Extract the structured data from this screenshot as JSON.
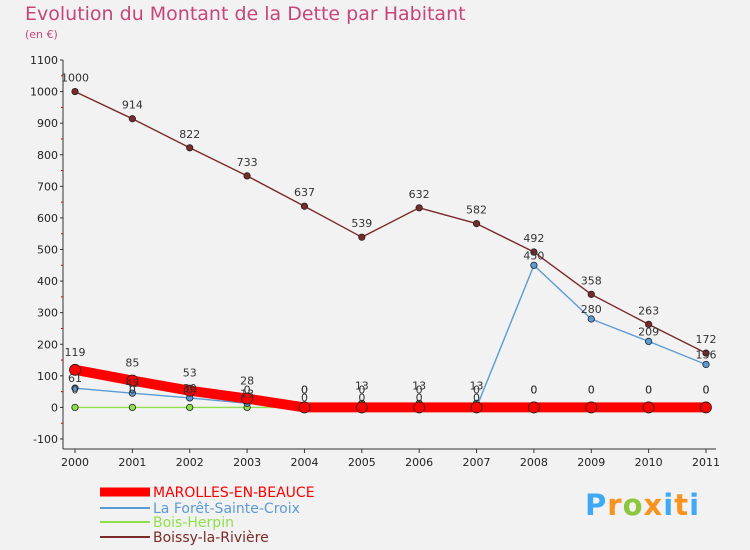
{
  "chart_data": {
    "type": "line",
    "title": "Evolution du Montant de la Dette par Habitant",
    "unit_label": "(en €)",
    "x": [
      "2000",
      "2001",
      "2002",
      "2003",
      "2004",
      "2005",
      "2006",
      "2007",
      "2008",
      "2009",
      "2010",
      "2011"
    ],
    "ylim": [
      -100,
      1100
    ],
    "y_ticks": [
      -100,
      0,
      100,
      200,
      300,
      400,
      500,
      600,
      700,
      800,
      900,
      1000,
      1100
    ],
    "grid": false,
    "legend_position": "bottom-left",
    "series": [
      {
        "name": "MAROLLES-EN-BEAUCE",
        "color": "#ff0000",
        "values": [
          119,
          85,
          53,
          28,
          0,
          0,
          0,
          0,
          0,
          0,
          0,
          0
        ],
        "labels": [
          "119",
          "85",
          "53",
          "28",
          "0",
          "0",
          "0",
          "0",
          "0",
          "0",
          "0",
          "0"
        ]
      },
      {
        "name": "La Forêt-Sainte-Croix",
        "color": "#5b9bd5",
        "values": [
          61,
          45,
          30,
          13,
          0,
          0,
          0,
          0,
          450,
          280,
          209,
          136
        ],
        "labels": [
          "61",
          "45",
          "30",
          "13",
          "0",
          "0",
          "0",
          "0",
          "450",
          "280",
          "209",
          "136"
        ]
      },
      {
        "name": "Bois-Herpin",
        "color": "#8ee04a",
        "values": [
          0,
          0,
          0,
          0,
          0,
          13,
          13,
          13,
          0,
          0,
          0,
          0
        ],
        "labels": [
          "0",
          "0",
          "0",
          "0",
          "0",
          "13",
          "13",
          "13",
          "0",
          "0",
          "0",
          "0"
        ]
      },
      {
        "name": "Boissy-la-Rivière",
        "color": "#7a2a2a",
        "values": [
          1000,
          914,
          822,
          733,
          637,
          539,
          632,
          582,
          492,
          358,
          263,
          172
        ],
        "labels": [
          "1000",
          "914",
          "822",
          "733",
          "637",
          "539",
          "632",
          "582",
          "492",
          "358",
          "263",
          "172"
        ]
      }
    ]
  },
  "logo": {
    "letters": [
      "P",
      "r",
      "o",
      "x",
      "i",
      "t",
      "i"
    ],
    "colors": [
      "#3fa9f5",
      "#f7931e",
      "#8cc63f",
      "#f7931e",
      "#3fa9f5",
      "#f7931e",
      "#3fa9f5"
    ]
  }
}
